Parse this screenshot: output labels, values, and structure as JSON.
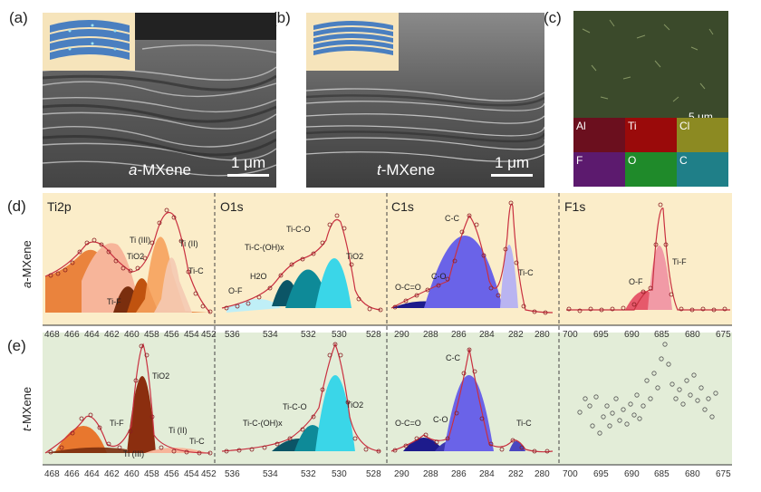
{
  "panels": {
    "a": {
      "label": "(a)",
      "material_prefix": "a",
      "material_suffix": "-MXene",
      "scale": "1 μm"
    },
    "b": {
      "label": "(b)",
      "material_prefix": "t",
      "material_suffix": "-MXene",
      "scale": "1 μm"
    },
    "c": {
      "label": "(c)",
      "scale": "5 μm",
      "legend": [
        "Al",
        "Ti",
        "Cl",
        "F",
        "O",
        "C"
      ],
      "maps": [
        {
          "element": "Al",
          "color": "#6b0f1e"
        },
        {
          "element": "Ti",
          "color": "#9a0a0a"
        },
        {
          "element": "Cl",
          "color": "#8c8a22"
        },
        {
          "element": "F",
          "color": "#5c1a6e"
        },
        {
          "element": "O",
          "color": "#1f8a2a"
        },
        {
          "element": "C",
          "color": "#1f7f88"
        }
      ]
    },
    "d": {
      "label": "(d)"
    },
    "e": {
      "label": "(e)"
    }
  },
  "rows": {
    "d": {
      "ylabel_prefix": "a",
      "ylabel_suffix": "-MXene",
      "bg": "#fbedc9"
    },
    "e": {
      "ylabel_prefix": "t",
      "ylabel_suffix": "-MXene",
      "bg": "#e3edd8"
    }
  },
  "spectra": {
    "ti2p": {
      "title": "Ti2p",
      "ticks": [
        "468",
        "466",
        "464",
        "462",
        "460",
        "458",
        "456",
        "454",
        "452"
      ]
    },
    "o1s": {
      "title": "O1s",
      "ticks": [
        "536",
        "534",
        "532",
        "530",
        "528"
      ]
    },
    "c1s": {
      "title": "C1s",
      "ticks": [
        "290",
        "288",
        "286",
        "284",
        "282",
        "280"
      ]
    },
    "f1s": {
      "title": "F1s",
      "ticks": [
        "700",
        "695",
        "690",
        "685",
        "680",
        "675"
      ]
    }
  },
  "annotations_d": {
    "ti2p": [
      "Ti (III)",
      "TiO2",
      "Ti (II)",
      "Ti-C",
      "Ti-F"
    ],
    "o1s": [
      "Ti-C-O",
      "Ti-C-(OH)x",
      "TiO2",
      "H2O",
      "O-F"
    ],
    "c1s": [
      "C-C",
      "O-C=O",
      "C-O",
      "Ti-C"
    ],
    "f1s": [
      "Ti-F",
      "O-F"
    ]
  },
  "annotations_e": {
    "ti2p": [
      "TiO2",
      "Ti-F",
      "Ti (II)",
      "Ti-C",
      "Ti (III)"
    ],
    "o1s": [
      "TiO2",
      "Ti-C-O",
      "Ti-C-(OH)x"
    ],
    "c1s": [
      "C-C",
      "O-C=O",
      "C-O",
      "Ti-C"
    ]
  },
  "colors": {
    "ti_orange": "#e8772e",
    "ti_brown": "#7a2e0e",
    "ti_light": "#f7b59a",
    "o_teal": "#0e8a98",
    "o_cyan": "#3ad6e8",
    "o_dark": "#0b5566",
    "c_blue": "#6a63e8",
    "c_navy": "#1d1b8c",
    "c_light": "#b9b4f1",
    "f_pink": "#f19aa6",
    "f_red": "#e6596b",
    "fit": "#c93040",
    "point": "#8a1d22"
  }
}
